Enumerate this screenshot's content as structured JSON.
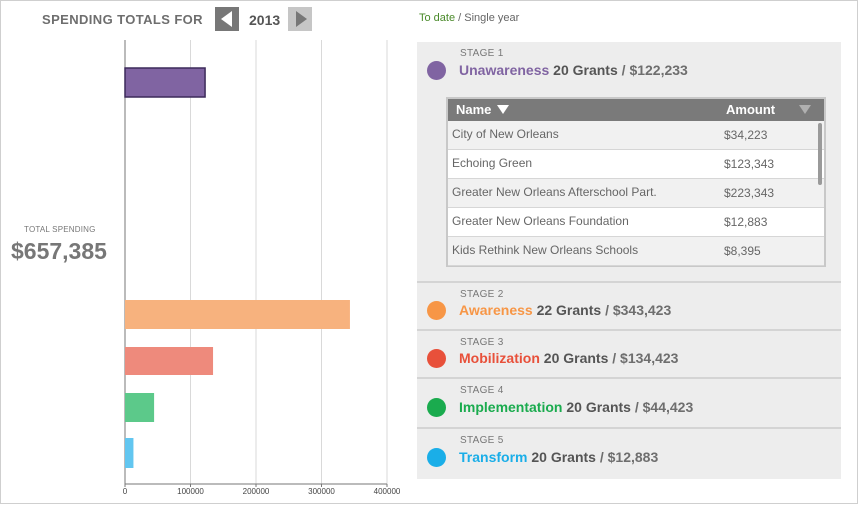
{
  "header": {
    "title": "SPENDING TOTALS FOR",
    "year": "2013",
    "prev_icon": "triangle-left-icon",
    "next_icon": "triangle-right-icon"
  },
  "mode": {
    "active": "To date",
    "separator": "/",
    "other": "Single year"
  },
  "total": {
    "label": "TOTAL SPENDING",
    "value": "$657,385"
  },
  "stages": [
    {
      "stage_label": "STAGE 1",
      "name": "Unawareness",
      "grants": "20 Grants",
      "sep": "/",
      "amount": "$122,233",
      "color": "#8064a2"
    },
    {
      "stage_label": "STAGE 2",
      "name": "Awareness",
      "grants": "22 Grants",
      "sep": "/",
      "amount": "$343,423",
      "color": "#f79646"
    },
    {
      "stage_label": "STAGE 3",
      "name": "Mobilization",
      "grants": "20 Grants",
      "sep": "/",
      "amount": "$134,423",
      "color": "#e8503a"
    },
    {
      "stage_label": "STAGE 4",
      "name": "Implementation",
      "grants": "20 Grants",
      "sep": "/",
      "amount": "$44,423",
      "color": "#1aab4e"
    },
    {
      "stage_label": "STAGE 5",
      "name": "Transform",
      "grants": "20 Grants",
      "sep": "/",
      "amount": "$12,883",
      "color": "#1aaee8"
    }
  ],
  "grant_table": {
    "col_name": "Name",
    "col_amount": "Amount",
    "rows": [
      {
        "name": "City of New Orleans",
        "amount": "$34,223"
      },
      {
        "name": "Echoing Green",
        "amount": "$123,343"
      },
      {
        "name": "Greater New Orleans Afterschool Part.",
        "amount": "$223,343"
      },
      {
        "name": "Greater New Orleans Foundation",
        "amount": "$12,883"
      },
      {
        "name": "Kids Rethink New Orleans Schools",
        "amount": "$8,395"
      }
    ]
  },
  "chart_data": {
    "type": "bar",
    "orientation": "horizontal",
    "categories": [
      "Unawareness",
      "Awareness",
      "Mobilization",
      "Implementation",
      "Transform"
    ],
    "values": [
      122233,
      343423,
      134423,
      44423,
      12883
    ],
    "colors": [
      "#8064a2",
      "#f7b27e",
      "#ee8a7c",
      "#5cc98a",
      "#62c6f0"
    ],
    "xlim": [
      0,
      400000
    ],
    "ticks": [
      0,
      100000,
      200000,
      300000,
      400000
    ],
    "tick_labels": [
      "0",
      "100000",
      "200000",
      "300000",
      "400000"
    ],
    "grid": true
  }
}
